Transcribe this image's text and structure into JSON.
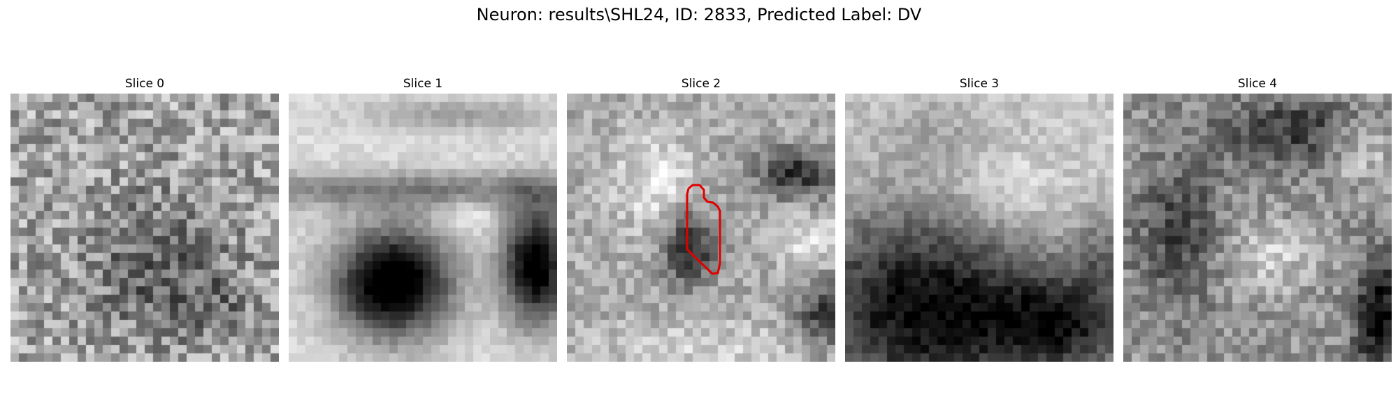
{
  "figure": {
    "title": "Neuron: results\\SHL24, ID: 2833, Predicted Label: DV"
  },
  "slices": [
    {
      "title": "Slice 0",
      "pattern": "noise"
    },
    {
      "title": "Slice 1",
      "pattern": "dark-blob"
    },
    {
      "title": "Slice 2",
      "pattern": "dark-spot",
      "outline": true
    },
    {
      "title": "Slice 3",
      "pattern": "dark-lower-left"
    },
    {
      "title": "Slice 4",
      "pattern": "mottled"
    }
  ],
  "colors": {
    "outline": "#e00000",
    "background": "#ffffff"
  }
}
